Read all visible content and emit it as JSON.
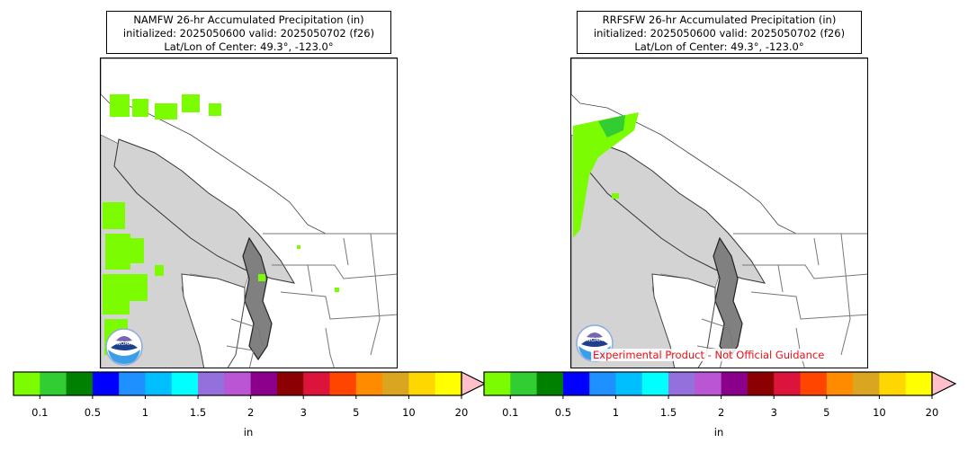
{
  "panels": [
    {
      "title_line1": "NAMFW 26-hr Accumulated Precipitation (in)",
      "title_line2": "initialized: 2025050600 valid: 2025050702 (f26)",
      "title_line3": "Lat/Lon of Center: 49.3°, -123.0°",
      "logo_text": "NOAA",
      "disclaimer": ""
    },
    {
      "title_line1": "RRFSFW 26-hr Accumulated Precipitation (in)",
      "title_line2": "initialized: 2025050600 valid: 2025050702 (f26)",
      "title_line3": "Lat/Lon of Center: 49.3°, -123.0°",
      "logo_text": "NOAA",
      "disclaimer": "Experimental Product - Not Official Guidance"
    }
  ],
  "colorbar": {
    "unit": "in",
    "tick_labels": [
      "0.1",
      "0.5",
      "1",
      "1.5",
      "2",
      "3",
      "5",
      "10",
      "20"
    ],
    "colors": [
      "#7cfc00",
      "#32cd32",
      "#008000",
      "#0000ff",
      "#1e90ff",
      "#00bfff",
      "#00ffff",
      "#9370db",
      "#ba55d3",
      "#8b008b",
      "#8b0000",
      "#dc143c",
      "#ff4500",
      "#ff8c00",
      "#daa520",
      "#ffd700",
      "#ffff00"
    ],
    "extend_color": "#ffc0cb"
  },
  "map_colors": {
    "land": "#d3d3d3",
    "water": "#ffffff",
    "precip_light": "#7cfc00",
    "precip_medium": "#32cd32"
  }
}
